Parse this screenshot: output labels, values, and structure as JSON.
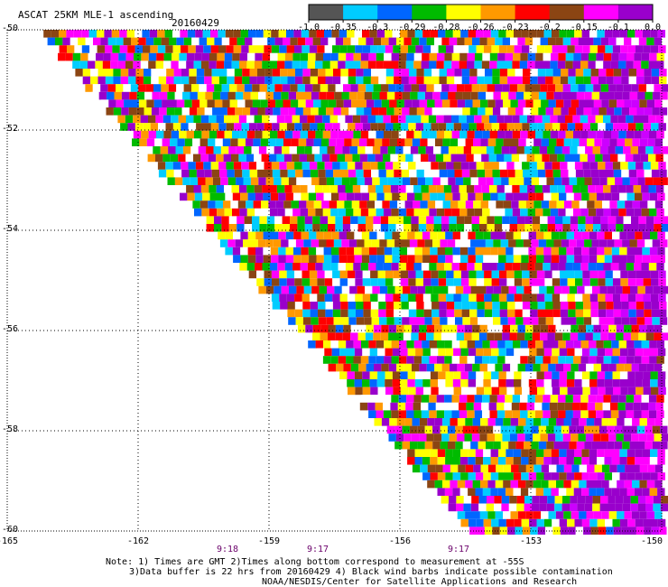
{
  "title": "ASCAT 25KM MLE-1 ascending",
  "date": "20160429",
  "colorbar": {
    "colors": [
      "#555555",
      "#00ccff",
      "#0066ff",
      "#00bb00",
      "#ffff00",
      "#ff9900",
      "#ff0000",
      "#8b4513",
      "#ff00ff",
      "#9900cc"
    ],
    "labels": [
      "-1.0",
      "-0.35",
      "-0.3",
      "-0.29",
      "-0.28",
      "-0.26",
      "-0.23",
      "-0.2",
      "-0.15",
      "-0.1",
      "0.0"
    ]
  },
  "map": {
    "lat_labels": [
      "-50",
      "-52",
      "-54",
      "-56",
      "-58",
      "-60"
    ],
    "lat_values": [
      -50,
      -52,
      -54,
      -56,
      -58,
      -60
    ],
    "lon_labels": [
      "-165",
      "-162",
      "-159",
      "-156",
      "-153",
      "-150"
    ],
    "lon_values": [
      -165,
      -162,
      -159,
      -156,
      -153,
      -150
    ],
    "lat_range": [
      -60,
      -50
    ],
    "lon_range": [
      -165,
      -150
    ],
    "times": [
      "9:18",
      "9:17",
      "9:17"
    ],
    "swath_edge": [
      {
        "lon": -164.2,
        "lat": -50
      },
      {
        "lon": -154.3,
        "lat": -60
      }
    ]
  },
  "notes": [
    "Note: 1) Times are GMT 2)Times along bottom correspond to measurement at -55S",
    "3)Data buffer is 22 hrs from 20160429 4) Black wind barbs indicate possible contamination",
    "NOAA/NESDIS/Center for Satellite Applications and Research"
  ]
}
